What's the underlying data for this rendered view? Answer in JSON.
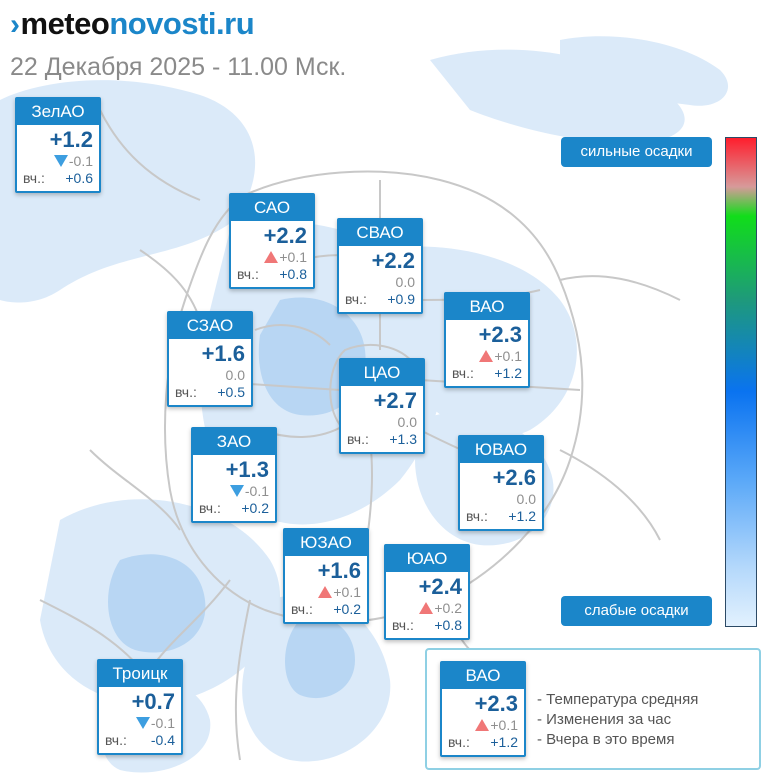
{
  "header": {
    "logo_icon": "double-chevron-mark",
    "logo_part1": "meteo",
    "logo_part2": "novosti.ru",
    "datetime": "22 Декабря 2025 - 11.00 Мск."
  },
  "colors": {
    "brand_blue": "#1b86c9",
    "temp_blue": "#1b5f9a",
    "change_up": "#f07777",
    "change_down": "#3d9ee0"
  },
  "districts": [
    {
      "name": "ЗелАО",
      "temp": "+1.2",
      "trend": "down",
      "change": "-0.1",
      "yesterday_label": "вч.:",
      "yesterday": "+0.6"
    },
    {
      "name": "САО",
      "temp": "+2.2",
      "trend": "up",
      "change": "+0.1",
      "yesterday_label": "вч.:",
      "yesterday": "+0.8"
    },
    {
      "name": "СВАО",
      "temp": "+2.2",
      "trend": "none",
      "change": "0.0",
      "yesterday_label": "вч.:",
      "yesterday": "+0.9"
    },
    {
      "name": "СЗАО",
      "temp": "+1.6",
      "trend": "none",
      "change": "0.0",
      "yesterday_label": "вч.:",
      "yesterday": "+0.5"
    },
    {
      "name": "ВАО",
      "temp": "+2.3",
      "trend": "up",
      "change": "+0.1",
      "yesterday_label": "вч.:",
      "yesterday": "+1.2"
    },
    {
      "name": "ЦАО",
      "temp": "+2.7",
      "trend": "none",
      "change": "0.0",
      "yesterday_label": "вч.:",
      "yesterday": "+1.3"
    },
    {
      "name": "ЗАО",
      "temp": "+1.3",
      "trend": "down",
      "change": "-0.1",
      "yesterday_label": "вч.:",
      "yesterday": "+0.2"
    },
    {
      "name": "ЮВАО",
      "temp": "+2.6",
      "trend": "none",
      "change": "0.0",
      "yesterday_label": "вч.:",
      "yesterday": "+1.2"
    },
    {
      "name": "ЮЗАО",
      "temp": "+1.6",
      "trend": "up",
      "change": "+0.1",
      "yesterday_label": "вч.:",
      "yesterday": "+0.2"
    },
    {
      "name": "ЮАО",
      "temp": "+2.4",
      "trend": "up",
      "change": "+0.2",
      "yesterday_label": "вч.:",
      "yesterday": "+0.8"
    },
    {
      "name": "Троицк",
      "temp": "+0.7",
      "trend": "down",
      "change": "-0.1",
      "yesterday_label": "вч.:",
      "yesterday": "-0.4"
    }
  ],
  "scale": {
    "heavy_label": "сильные осадки",
    "light_label": "слабые осадки"
  },
  "legend": {
    "example": {
      "name": "ВАО",
      "temp": "+2.3",
      "trend": "up",
      "change": "+0.1",
      "yesterday_label": "вч.:",
      "yesterday": "+1.2"
    },
    "items": [
      "Температура средняя",
      "Изменения за час",
      "Вчера в это время"
    ]
  }
}
